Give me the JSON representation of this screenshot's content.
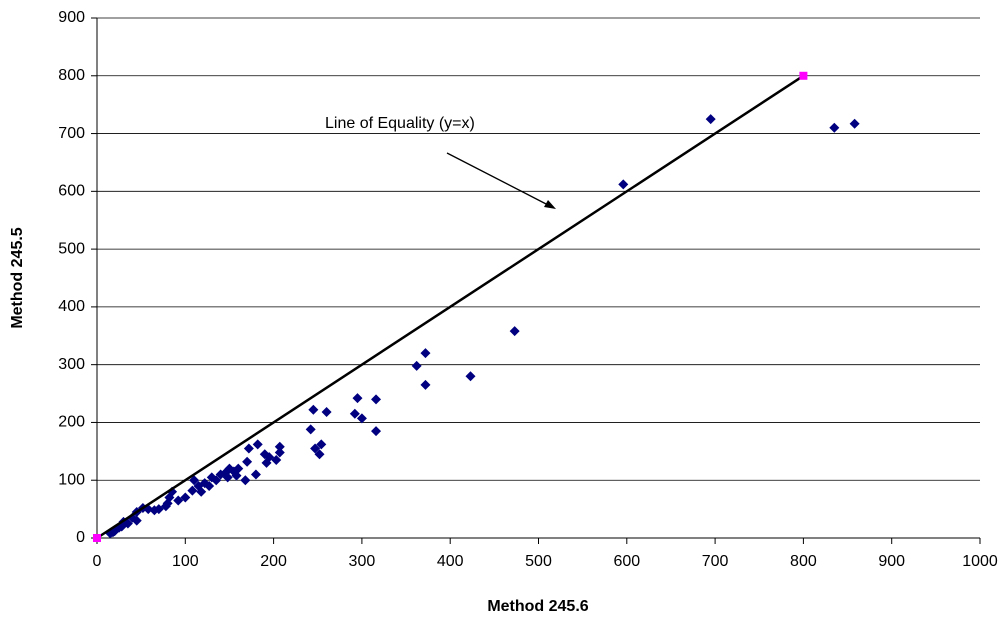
{
  "chart_data": {
    "type": "scatter",
    "xlabel": "Method 245.6",
    "ylabel": "Method 245.5",
    "annotation": "Line of Equality (y=x)",
    "xlim": [
      0,
      1000
    ],
    "xticks": [
      0,
      100,
      200,
      300,
      400,
      500,
      600,
      700,
      800,
      900,
      1000
    ],
    "ylim": [
      0,
      900
    ],
    "yticks": [
      0,
      100,
      200,
      300,
      400,
      500,
      600,
      700,
      800,
      900
    ],
    "grid": true,
    "series": [
      {
        "color": "#000080",
        "x": [
          596,
          695,
          835,
          858,
          473,
          423,
          372,
          372,
          362,
          316,
          316,
          300,
          295,
          292,
          260,
          254,
          252,
          247,
          245,
          242,
          207,
          207,
          203,
          195,
          192,
          190,
          182,
          180,
          172,
          170,
          168,
          160,
          158,
          155,
          150,
          148,
          145,
          140,
          135,
          130,
          127,
          122,
          118,
          115,
          110,
          108,
          100,
          92,
          85,
          82,
          80,
          78,
          70,
          65,
          58,
          52,
          45,
          45,
          40,
          35,
          30,
          28,
          25,
          20,
          18,
          15
        ],
        "values": [
          612,
          725,
          710,
          717,
          358,
          280,
          320,
          265,
          298,
          240,
          185,
          207,
          242,
          215,
          218,
          162,
          145,
          155,
          222,
          188,
          158,
          148,
          135,
          140,
          130,
          145,
          162,
          110,
          155,
          132,
          100,
          120,
          108,
          115,
          120,
          105,
          112,
          110,
          100,
          105,
          90,
          95,
          80,
          90,
          100,
          82,
          70,
          65,
          80,
          70,
          60,
          55,
          50,
          48,
          50,
          52,
          45,
          30,
          35,
          25,
          28,
          20,
          18,
          12,
          10,
          8
        ]
      },
      {
        "type": "line",
        "color": "#000000",
        "marker_color": "#ff00ff",
        "x": [
          0,
          800
        ],
        "values": [
          0,
          800
        ]
      }
    ]
  }
}
